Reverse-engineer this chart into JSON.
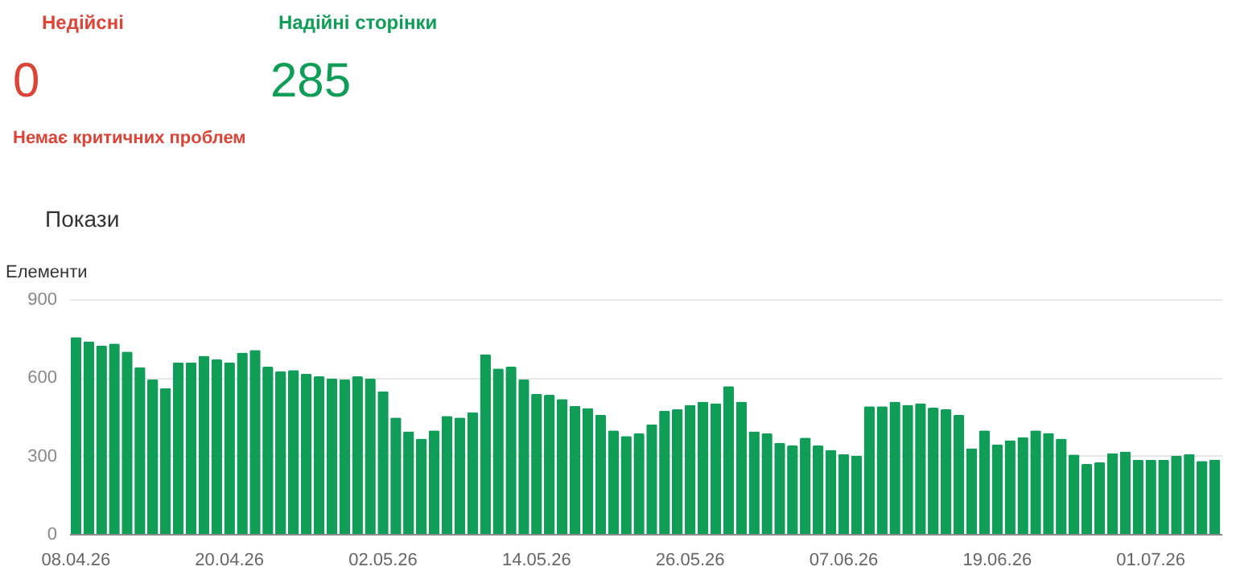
{
  "chart_data": {
    "type": "bar",
    "ylabel": "Елементи",
    "color": "#0f9d58",
    "categories": [
      "08.04.26",
      null,
      null,
      null,
      null,
      null,
      null,
      null,
      null,
      null,
      null,
      null,
      "20.04.26",
      null,
      null,
      null,
      null,
      null,
      null,
      null,
      null,
      null,
      null,
      null,
      "02.05.26",
      null,
      null,
      null,
      null,
      null,
      null,
      null,
      null,
      null,
      null,
      null,
      "14.05.26",
      null,
      null,
      null,
      null,
      null,
      null,
      null,
      null,
      null,
      null,
      null,
      "26.05.26",
      null,
      null,
      null,
      null,
      null,
      null,
      null,
      null,
      null,
      null,
      null,
      "07.06.26",
      null,
      null,
      null,
      null,
      null,
      null,
      null,
      null,
      null,
      null,
      null,
      "19.06.26",
      null,
      null,
      null,
      null,
      null,
      null,
      null,
      null,
      null,
      null,
      null,
      "01.07.26",
      null,
      null,
      null,
      null,
      null
    ],
    "values": [
      754,
      738,
      722,
      730,
      699,
      639,
      592,
      559,
      657,
      657,
      683,
      669,
      657,
      695,
      705,
      641,
      624,
      628,
      614,
      604,
      596,
      592,
      604,
      596,
      547,
      446,
      393,
      365,
      397,
      452,
      446,
      466,
      689,
      634,
      641,
      592,
      537,
      533,
      517,
      491,
      482,
      456,
      397,
      375,
      385,
      420,
      472,
      478,
      495,
      507,
      501,
      566,
      507,
      393,
      385,
      349,
      339,
      369,
      339,
      322,
      306,
      300,
      489,
      489,
      507,
      495,
      501,
      484,
      478,
      456,
      328,
      397,
      343,
      359,
      371,
      397,
      387,
      365,
      304,
      268,
      274,
      310,
      316,
      284,
      284,
      284,
      300,
      306,
      280,
      285
    ],
    "ylim": [
      0,
      900
    ],
    "yticks": [
      0,
      300,
      600,
      900
    ],
    "grid": "y",
    "annotations": [
      "Недійсні",
      "0",
      "Немає критичних проблем",
      "Надійні сторінки",
      "285",
      "Покази"
    ]
  }
}
